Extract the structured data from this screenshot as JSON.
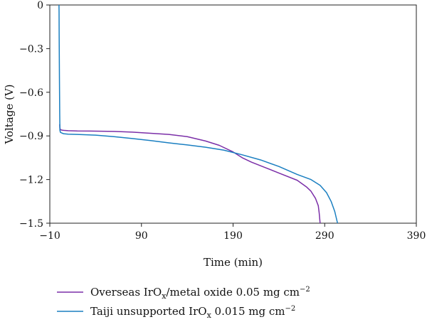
{
  "chart_data": {
    "type": "line",
    "xlabel": "Time (min)",
    "ylabel": "Voltage (V)",
    "xlim": [
      -10,
      390
    ],
    "ylim": [
      -1.5,
      0
    ],
    "x_ticks": [
      -10,
      90,
      190,
      290,
      390
    ],
    "y_ticks": [
      0,
      -0.3,
      -0.6,
      -0.9,
      -1.2,
      -1.5
    ],
    "x_tick_labels": [
      "−10",
      "90",
      "190",
      "290",
      "390"
    ],
    "y_tick_labels": [
      "0",
      "−0.3",
      "−0.6",
      "−0.9",
      "−1.2",
      "−1.5"
    ],
    "legend_position": "below",
    "grid": false,
    "series": [
      {
        "name": "Overseas IrOx/metal oxide 0.05 mg cm−2",
        "legend": {
          "pre": "Overseas IrO",
          "sub": "x",
          "mid": "/metal oxide 0.05 mg cm",
          "sup": "−2"
        },
        "color": "#7b2fa8",
        "x": [
          0.8,
          0.9,
          1.0,
          1.2,
          1.5,
          2,
          3,
          5,
          10,
          20,
          40,
          60,
          80,
          100,
          120,
          140,
          160,
          175,
          190,
          200,
          210,
          220,
          240,
          260,
          270,
          275,
          280,
          283,
          284,
          285
        ],
        "y": [
          -0.82,
          -0.835,
          -0.845,
          -0.85,
          -0.855,
          -0.858,
          -0.86,
          -0.862,
          -0.864,
          -0.866,
          -0.867,
          -0.869,
          -0.874,
          -0.882,
          -0.89,
          -0.905,
          -0.935,
          -0.965,
          -1.01,
          -1.05,
          -1.08,
          -1.105,
          -1.155,
          -1.205,
          -1.25,
          -1.28,
          -1.33,
          -1.38,
          -1.43,
          -1.5
        ]
      },
      {
        "name": "Taiji unsupported IrOx 0.015 mg cm−2",
        "legend": {
          "pre": "Taiji unsupported IrO",
          "sub": "x",
          "mid": " 0.015 mg cm",
          "sup": "−2"
        },
        "color": "#1a7fc1",
        "x": [
          0,
          0.1,
          0.2,
          0.3,
          0.5,
          0.8,
          1,
          1.5,
          3,
          5,
          10,
          20,
          40,
          60,
          80,
          100,
          120,
          140,
          160,
          180,
          200,
          220,
          240,
          260,
          275,
          285,
          292,
          297,
          301,
          304
        ],
        "y": [
          0,
          -0.05,
          -0.2,
          -0.3,
          -0.5,
          -0.75,
          -0.86,
          -0.875,
          -0.88,
          -0.885,
          -0.888,
          -0.89,
          -0.895,
          -0.905,
          -0.918,
          -0.932,
          -0.948,
          -0.962,
          -0.978,
          -0.998,
          -1.03,
          -1.065,
          -1.11,
          -1.165,
          -1.2,
          -1.24,
          -1.29,
          -1.35,
          -1.42,
          -1.5
        ]
      }
    ]
  }
}
